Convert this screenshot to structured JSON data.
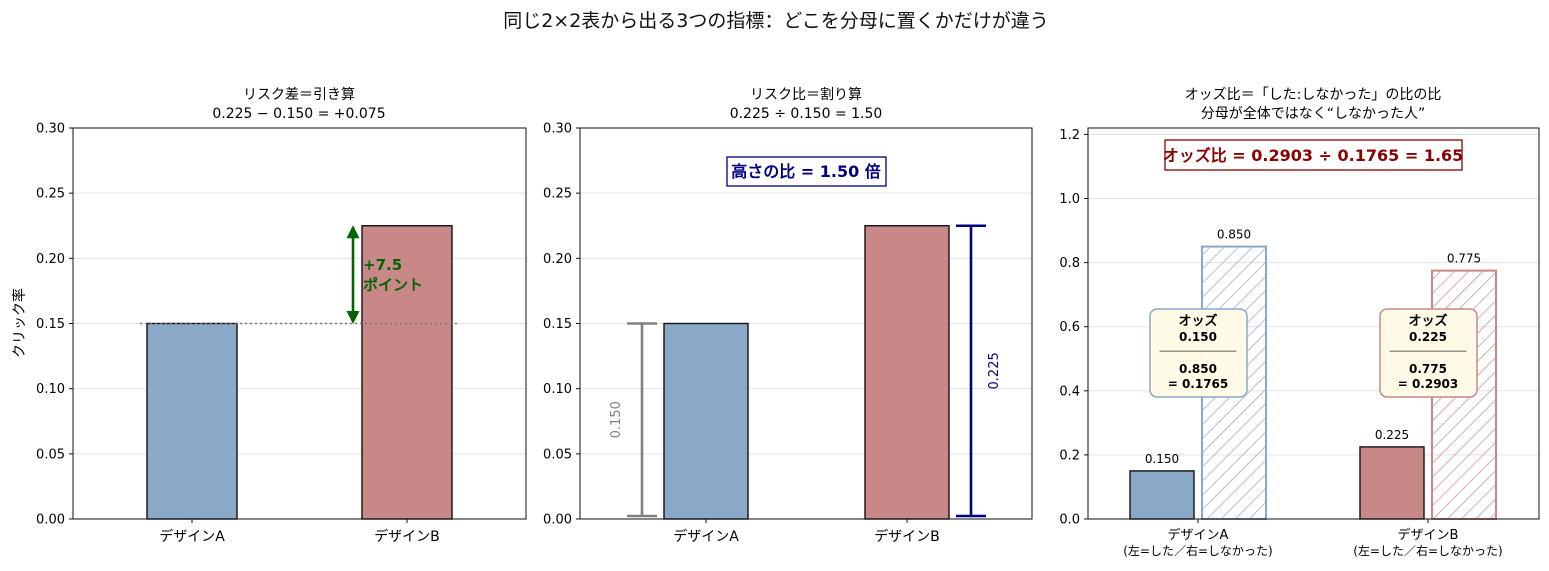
{
  "suptitle": "同じ2×2表から出る3つの指標：どこを分母に置くかだけが違う",
  "chart_data": [
    {
      "type": "bar",
      "title_line1": "リスク差＝引き算",
      "title_line2": "0.225 − 0.150 = +0.075",
      "ylabel": "クリック率",
      "categories": [
        "デザインA",
        "デザインB"
      ],
      "values": [
        0.15,
        0.225
      ],
      "colors": [
        "#8aa9c8",
        "#c98888"
      ],
      "ylim": [
        0,
        0.3
      ],
      "yticks": [
        "0.00",
        "0.05",
        "0.10",
        "0.15",
        "0.20",
        "0.25",
        "0.30"
      ],
      "grid": true,
      "baseline_value": 0.15,
      "annotation_line1": "+7.5",
      "annotation_line2": "ポイント",
      "annotation_color": "#006400"
    },
    {
      "type": "bar",
      "title_line1": "リスク比＝割り算",
      "title_line2": "0.225 ÷ 0.150 = 1.50",
      "categories": [
        "デザインA",
        "デザインB"
      ],
      "values": [
        0.15,
        0.225
      ],
      "colors": [
        "#8aa9c8",
        "#c98888"
      ],
      "ylim": [
        0,
        0.3
      ],
      "yticks": [
        "0.00",
        "0.05",
        "0.10",
        "0.15",
        "0.20",
        "0.25",
        "0.30"
      ],
      "grid": true,
      "box_label": "高さの比 = 1.50 倍",
      "box_color": "#000080",
      "bracket_a_label": "0.150",
      "bracket_a_color": "#808080",
      "bracket_b_label": "0.225",
      "bracket_b_color": "#000080"
    },
    {
      "type": "bar",
      "title_line1": "オッズ比＝「した:しなかった」の比の比",
      "title_line2": "分母が全体ではなく“しなかった人”",
      "categories": [
        "デザインA\n(左=した／右=しなかった)",
        "デザインB\n(左=した／右=しなかった)"
      ],
      "category_line1": [
        "デザインA",
        "デザインB"
      ],
      "category_line2": [
        "(左=した／右=しなかった)",
        "(左=した／右=しなかった)"
      ],
      "series": [
        {
          "values": [
            0.15,
            0.225
          ],
          "labels": [
            "0.150",
            "0.225"
          ]
        },
        {
          "values": [
            0.85,
            0.775
          ],
          "labels": [
            "0.850",
            "0.775"
          ]
        }
      ],
      "colors": [
        "#8aa9c8",
        "#c98888"
      ],
      "ylim": [
        0,
        1.22
      ],
      "yticks": [
        "0.0",
        "0.2",
        "0.4",
        "0.6",
        "0.8",
        "1.0",
        "1.2"
      ],
      "grid": true,
      "box_label": "オッズ比 = 0.2903 ÷ 0.1765 = 1.65",
      "box_color": "#8b0000",
      "odds_boxes": [
        {
          "title": "オッズ",
          "numerator": "0.150",
          "rule": "―――――――",
          "denominator": "0.850",
          "result": "= 0.1765"
        },
        {
          "title": "オッズ",
          "numerator": "0.225",
          "rule": "―――――――",
          "denominator": "0.775",
          "result": "= 0.2903"
        }
      ]
    }
  ]
}
